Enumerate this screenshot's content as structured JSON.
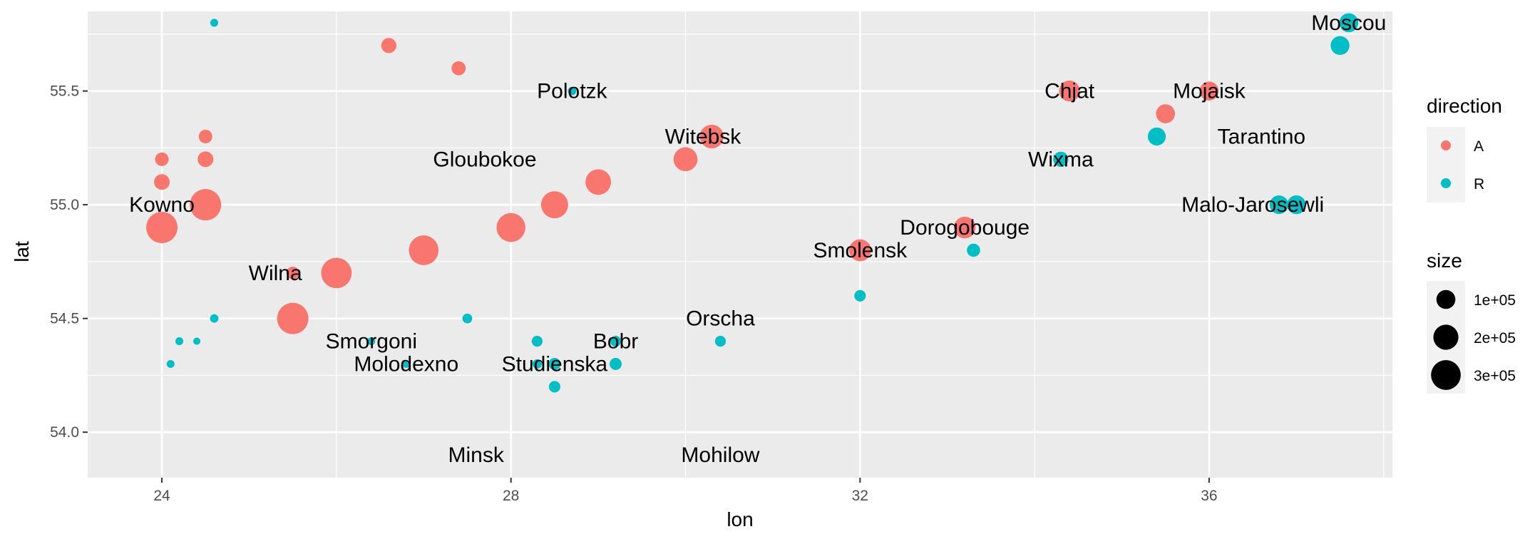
{
  "chart_data": {
    "type": "scatter",
    "title": "",
    "xlabel": "lon",
    "ylabel": "lat",
    "xlim": [
      23.15,
      38.1
    ],
    "ylim": [
      53.8,
      55.85
    ],
    "x_ticks": [
      24,
      28,
      32,
      36
    ],
    "x_tick_labels": [
      "24",
      "28",
      "32",
      "36"
    ],
    "y_ticks": [
      54.0,
      54.5,
      55.0,
      55.5
    ],
    "y_tick_labels": [
      "54.0",
      "54.5",
      "55.0",
      "55.5"
    ],
    "grid": true,
    "legend_position": "right",
    "colors": {
      "A": "#F8766D",
      "R": "#00BFC4",
      "panel": "#EBEBEB",
      "grid": "#FFFFFF"
    },
    "legend": {
      "color_title": "direction",
      "color_entries": [
        "A",
        "R"
      ],
      "size_title": "size",
      "size_entries": [
        {
          "label": "1e+05",
          "value": 100000
        },
        {
          "label": "2e+05",
          "value": 200000
        },
        {
          "label": "3e+05",
          "value": 300000
        }
      ]
    },
    "points": [
      {
        "lon": 24.0,
        "lat": 54.9,
        "size": 340000,
        "direction": "A"
      },
      {
        "lon": 24.5,
        "lat": 55.0,
        "size": 340000,
        "direction": "A"
      },
      {
        "lon": 25.5,
        "lat": 54.5,
        "size": 340000,
        "direction": "A"
      },
      {
        "lon": 26.0,
        "lat": 54.7,
        "size": 320000,
        "direction": "A"
      },
      {
        "lon": 27.0,
        "lat": 54.8,
        "size": 300000,
        "direction": "A"
      },
      {
        "lon": 28.0,
        "lat": 54.9,
        "size": 280000,
        "direction": "A"
      },
      {
        "lon": 28.5,
        "lat": 55.0,
        "size": 240000,
        "direction": "A"
      },
      {
        "lon": 29.0,
        "lat": 55.1,
        "size": 210000,
        "direction": "A"
      },
      {
        "lon": 30.0,
        "lat": 55.2,
        "size": 180000,
        "direction": "A"
      },
      {
        "lon": 30.3,
        "lat": 55.3,
        "size": 175000,
        "direction": "A"
      },
      {
        "lon": 32.0,
        "lat": 54.8,
        "size": 145000,
        "direction": "A"
      },
      {
        "lon": 33.2,
        "lat": 54.9,
        "size": 140000,
        "direction": "A"
      },
      {
        "lon": 34.4,
        "lat": 55.5,
        "size": 127100,
        "direction": "A"
      },
      {
        "lon": 35.5,
        "lat": 55.4,
        "size": 100000,
        "direction": "A"
      },
      {
        "lon": 36.0,
        "lat": 55.5,
        "size": 100000,
        "direction": "A"
      },
      {
        "lon": 24.0,
        "lat": 55.1,
        "size": 60000,
        "direction": "A"
      },
      {
        "lon": 24.0,
        "lat": 55.2,
        "size": 40000,
        "direction": "A"
      },
      {
        "lon": 24.5,
        "lat": 55.2,
        "size": 60000,
        "direction": "A"
      },
      {
        "lon": 24.5,
        "lat": 55.3,
        "size": 40000,
        "direction": "A"
      },
      {
        "lon": 25.5,
        "lat": 54.7,
        "size": 33000,
        "direction": "A"
      },
      {
        "lon": 26.6,
        "lat": 55.7,
        "size": 55000,
        "direction": "A"
      },
      {
        "lon": 27.4,
        "lat": 55.6,
        "size": 45000,
        "direction": "A"
      },
      {
        "lon": 37.6,
        "lat": 55.8,
        "size": 100000,
        "direction": "R"
      },
      {
        "lon": 37.5,
        "lat": 55.7,
        "size": 98000,
        "direction": "R"
      },
      {
        "lon": 37.0,
        "lat": 55.0,
        "size": 97000,
        "direction": "R"
      },
      {
        "lon": 36.8,
        "lat": 55.0,
        "size": 96000,
        "direction": "R"
      },
      {
        "lon": 35.4,
        "lat": 55.3,
        "size": 87000,
        "direction": "R"
      },
      {
        "lon": 34.3,
        "lat": 55.2,
        "size": 55000,
        "direction": "R"
      },
      {
        "lon": 33.3,
        "lat": 54.8,
        "size": 37000,
        "direction": "R"
      },
      {
        "lon": 32.0,
        "lat": 54.6,
        "size": 24000,
        "direction": "R"
      },
      {
        "lon": 30.4,
        "lat": 54.4,
        "size": 20000,
        "direction": "R"
      },
      {
        "lon": 29.2,
        "lat": 54.4,
        "size": 20000,
        "direction": "R"
      },
      {
        "lon": 29.2,
        "lat": 54.3,
        "size": 28000,
        "direction": "R"
      },
      {
        "lon": 28.5,
        "lat": 54.3,
        "size": 28000,
        "direction": "R"
      },
      {
        "lon": 28.3,
        "lat": 54.4,
        "size": 20000,
        "direction": "R"
      },
      {
        "lon": 28.5,
        "lat": 54.2,
        "size": 24000,
        "direction": "R"
      },
      {
        "lon": 28.3,
        "lat": 54.3,
        "size": 12000,
        "direction": "R"
      },
      {
        "lon": 27.5,
        "lat": 54.5,
        "size": 14000,
        "direction": "R"
      },
      {
        "lon": 26.8,
        "lat": 54.3,
        "size": 6000,
        "direction": "R"
      },
      {
        "lon": 26.4,
        "lat": 54.4,
        "size": 6000,
        "direction": "R"
      },
      {
        "lon": 28.7,
        "lat": 55.5,
        "size": 8000,
        "direction": "R"
      },
      {
        "lon": 24.6,
        "lat": 54.5,
        "size": 8000,
        "direction": "R"
      },
      {
        "lon": 24.6,
        "lat": 55.8,
        "size": 6000,
        "direction": "R"
      },
      {
        "lon": 24.2,
        "lat": 54.4,
        "size": 6000,
        "direction": "R"
      },
      {
        "lon": 24.4,
        "lat": 54.4,
        "size": 4000,
        "direction": "R"
      },
      {
        "lon": 24.1,
        "lat": 54.3,
        "size": 6000,
        "direction": "R"
      }
    ],
    "cities": [
      {
        "name": "Kowno",
        "lon": 24.0,
        "lat": 55.0
      },
      {
        "name": "Wilna",
        "lon": 25.3,
        "lat": 54.7
      },
      {
        "name": "Smorgoni",
        "lon": 26.4,
        "lat": 54.4
      },
      {
        "name": "Molodexno",
        "lon": 26.8,
        "lat": 54.3
      },
      {
        "name": "Gloubokoe",
        "lon": 27.7,
        "lat": 55.2
      },
      {
        "name": "Minsk",
        "lon": 27.6,
        "lat": 53.9
      },
      {
        "name": "Studienska",
        "lon": 28.5,
        "lat": 54.3
      },
      {
        "name": "Polotzk",
        "lon": 28.7,
        "lat": 55.5
      },
      {
        "name": "Bobr",
        "lon": 29.2,
        "lat": 54.4
      },
      {
        "name": "Witebsk",
        "lon": 30.2,
        "lat": 55.3
      },
      {
        "name": "Orscha",
        "lon": 30.4,
        "lat": 54.5
      },
      {
        "name": "Mohilow",
        "lon": 30.4,
        "lat": 53.9
      },
      {
        "name": "Smolensk",
        "lon": 32.0,
        "lat": 54.8
      },
      {
        "name": "Dorogobouge",
        "lon": 33.2,
        "lat": 54.9
      },
      {
        "name": "Wixma",
        "lon": 34.3,
        "lat": 55.2
      },
      {
        "name": "Chjat",
        "lon": 34.4,
        "lat": 55.5
      },
      {
        "name": "Mojaisk",
        "lon": 36.0,
        "lat": 55.5
      },
      {
        "name": "Moscou",
        "lon": 37.6,
        "lat": 55.8
      },
      {
        "name": "Tarantino",
        "lon": 36.6,
        "lat": 55.3
      },
      {
        "name": "Malo-Jarosewli",
        "lon": 36.5,
        "lat": 55.0
      }
    ]
  }
}
